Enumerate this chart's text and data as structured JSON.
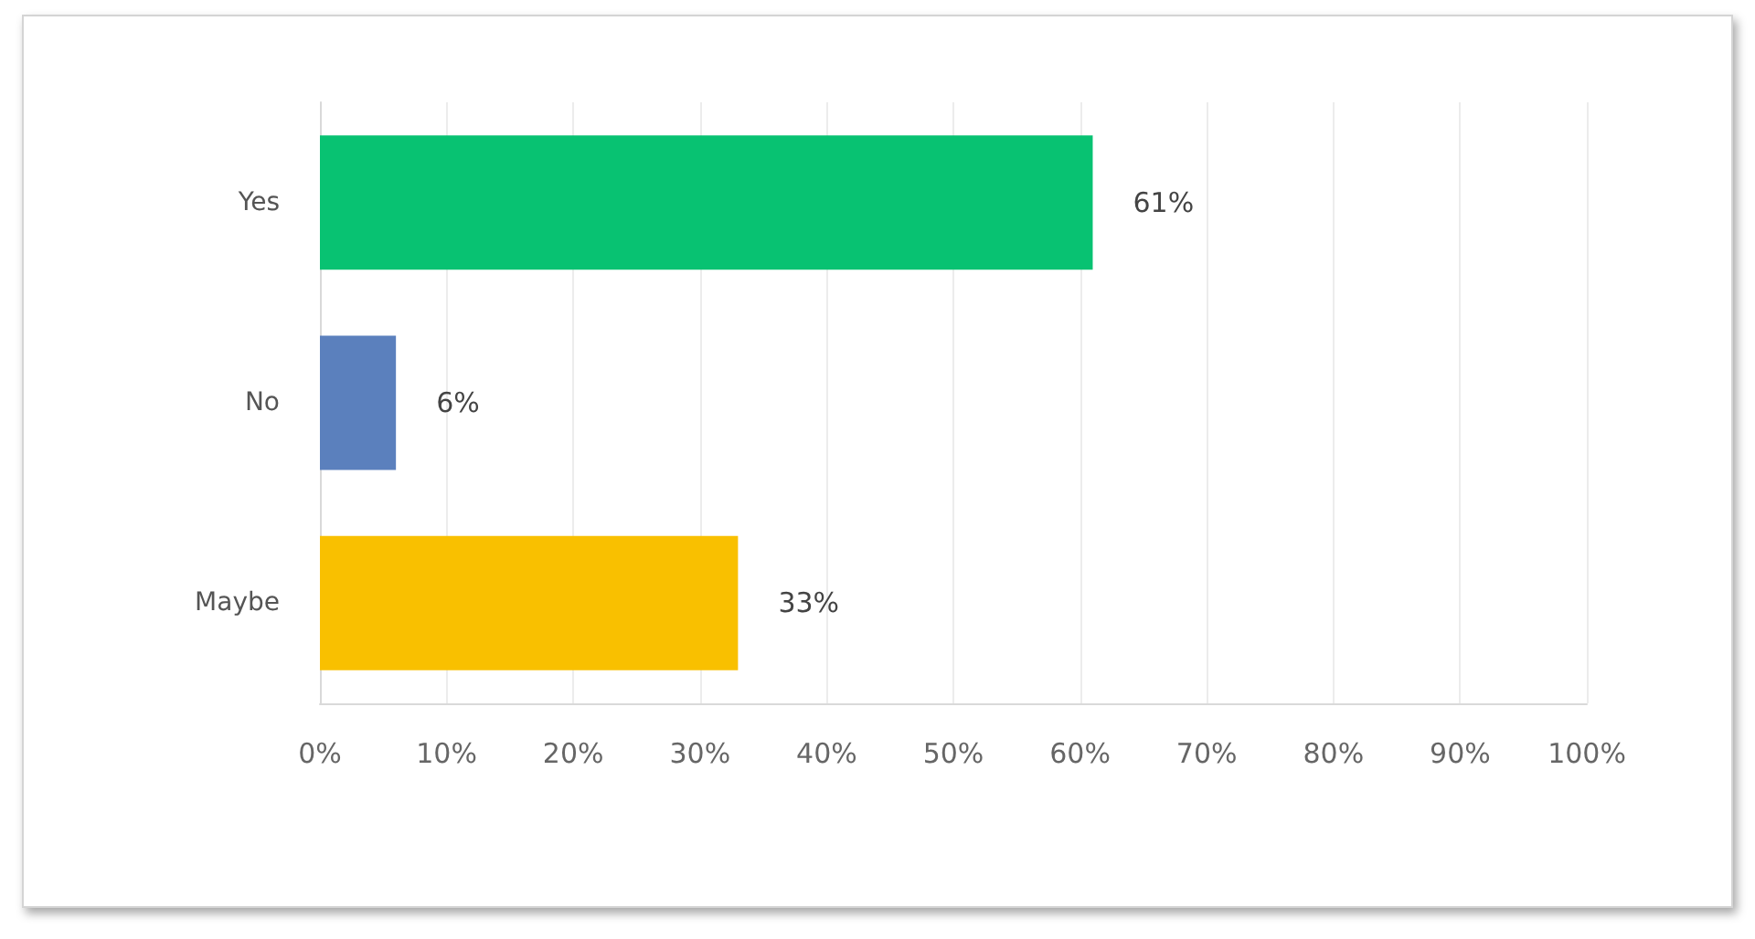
{
  "chart_data": {
    "type": "bar",
    "orientation": "horizontal",
    "categories": [
      "Yes",
      "No",
      "Maybe"
    ],
    "values": [
      61,
      6,
      33
    ],
    "colors": [
      "#08c272",
      "#5b80bd",
      "#f9c000"
    ],
    "value_labels": [
      "61%",
      "6%",
      "33%"
    ],
    "xlim": [
      0,
      100
    ],
    "xticks": [
      {
        "value": 0,
        "label": "0%"
      },
      {
        "value": 10,
        "label": "10%"
      },
      {
        "value": 20,
        "label": "20%"
      },
      {
        "value": 30,
        "label": "30%"
      },
      {
        "value": 40,
        "label": "40%"
      },
      {
        "value": 50,
        "label": "50%"
      },
      {
        "value": 60,
        "label": "60%"
      },
      {
        "value": 70,
        "label": "70%"
      },
      {
        "value": 80,
        "label": "80%"
      },
      {
        "value": 90,
        "label": "90%"
      },
      {
        "value": 100,
        "label": "100%"
      }
    ],
    "grid": "x"
  }
}
